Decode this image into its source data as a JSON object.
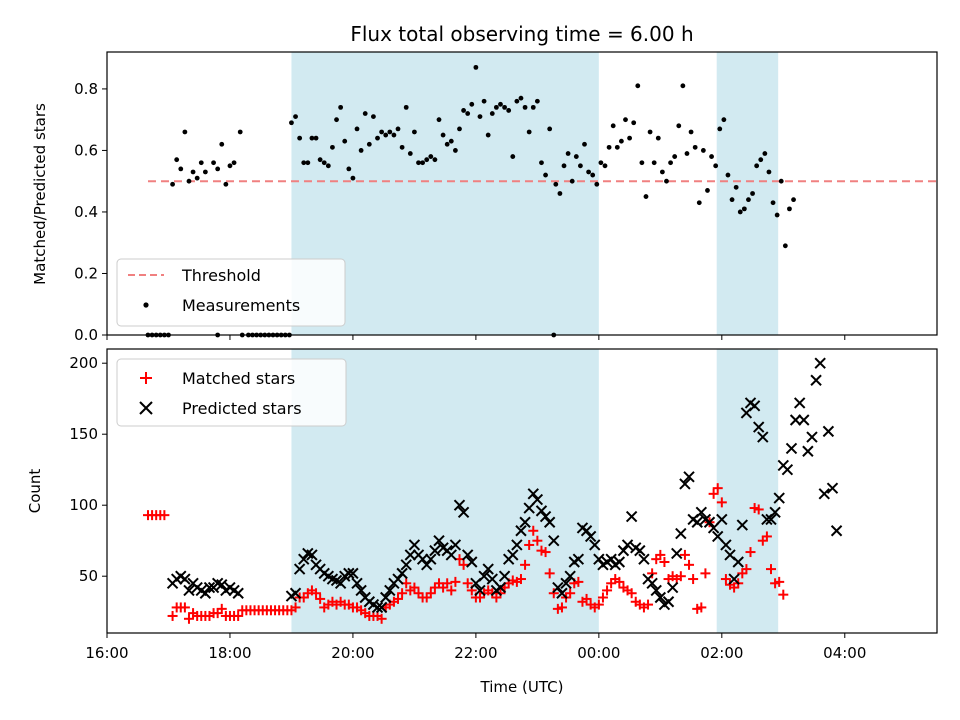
{
  "chart_data": {
    "type": "scatter",
    "title": "Flux total observing time = 6.00 h",
    "xlabel": "Time (UTC)",
    "x_ticks": [
      "16:00",
      "18:00",
      "20:00",
      "22:00",
      "00:00",
      "02:00",
      "04:00"
    ],
    "x_range": [
      "16:00",
      "05:30"
    ],
    "shaded_spans": [
      [
        "19:00",
        "00:00"
      ],
      [
        "01:55",
        "02:55"
      ]
    ],
    "shade_color": "#add8e6",
    "panels": [
      {
        "ylabel": "Matched/Predicted stars",
        "ylim": [
          0,
          0.92
        ],
        "y_ticks": [
          "0.0",
          "0.2",
          "0.4",
          "0.6",
          "0.8"
        ],
        "y_tick_values": [
          0,
          0.2,
          0.4,
          0.6,
          0.8
        ],
        "legend_placement": "lower-left",
        "threshold": {
          "name": "Threshold",
          "value": 0.5,
          "x_range": [
            "16:40",
            "05:30"
          ],
          "color": "#f08080"
        },
        "series": [
          {
            "name": "Measurements",
            "marker": "dot",
            "color": "#000000",
            "points": [
              [
                "16:40",
                0
              ],
              [
                "16:44",
                0
              ],
              [
                "16:48",
                0
              ],
              [
                "16:52",
                0
              ],
              [
                "16:56",
                0
              ],
              [
                "17:00",
                0
              ],
              [
                "17:48",
                0
              ],
              [
                "18:12",
                0
              ],
              [
                "18:18",
                0
              ],
              [
                "18:22",
                0
              ],
              [
                "18:26",
                0
              ],
              [
                "18:30",
                0
              ],
              [
                "18:34",
                0
              ],
              [
                "18:38",
                0
              ],
              [
                "18:42",
                0
              ],
              [
                "18:46",
                0
              ],
              [
                "18:50",
                0
              ],
              [
                "18:54",
                0
              ],
              [
                "18:58",
                0
              ],
              [
                "17:04",
                0.49
              ],
              [
                "17:08",
                0.57
              ],
              [
                "17:12",
                0.54
              ],
              [
                "17:16",
                0.66
              ],
              [
                "17:20",
                0.5
              ],
              [
                "17:24",
                0.53
              ],
              [
                "17:28",
                0.51
              ],
              [
                "17:32",
                0.56
              ],
              [
                "17:36",
                0.53
              ],
              [
                "17:44",
                0.56
              ],
              [
                "17:48",
                0.54
              ],
              [
                "17:52",
                0.62
              ],
              [
                "17:56",
                0.49
              ],
              [
                "18:00",
                0.55
              ],
              [
                "18:04",
                0.56
              ],
              [
                "18:10",
                0.66
              ],
              [
                "19:00",
                0.69
              ],
              [
                "19:04",
                0.71
              ],
              [
                "19:08",
                0.64
              ],
              [
                "19:12",
                0.56
              ],
              [
                "19:16",
                0.56
              ],
              [
                "19:20",
                0.64
              ],
              [
                "19:24",
                0.64
              ],
              [
                "19:28",
                0.57
              ],
              [
                "19:32",
                0.56
              ],
              [
                "19:36",
                0.55
              ],
              [
                "19:40",
                0.61
              ],
              [
                "19:44",
                0.7
              ],
              [
                "19:48",
                0.74
              ],
              [
                "19:52",
                0.63
              ],
              [
                "19:56",
                0.54
              ],
              [
                "20:00",
                0.51
              ],
              [
                "20:04",
                0.67
              ],
              [
                "20:08",
                0.6
              ],
              [
                "20:12",
                0.72
              ],
              [
                "20:16",
                0.62
              ],
              [
                "20:20",
                0.71
              ],
              [
                "20:24",
                0.64
              ],
              [
                "20:28",
                0.66
              ],
              [
                "20:32",
                0.65
              ],
              [
                "20:36",
                0.66
              ],
              [
                "20:40",
                0.65
              ],
              [
                "20:44",
                0.67
              ],
              [
                "20:48",
                0.61
              ],
              [
                "20:52",
                0.74
              ],
              [
                "20:56",
                0.59
              ],
              [
                "21:00",
                0.66
              ],
              [
                "21:04",
                0.56
              ],
              [
                "21:08",
                0.56
              ],
              [
                "21:12",
                0.57
              ],
              [
                "21:16",
                0.58
              ],
              [
                "21:20",
                0.57
              ],
              [
                "21:24",
                0.7
              ],
              [
                "21:28",
                0.65
              ],
              [
                "21:32",
                0.62
              ],
              [
                "21:36",
                0.63
              ],
              [
                "21:40",
                0.6
              ],
              [
                "21:44",
                0.67
              ],
              [
                "21:48",
                0.73
              ],
              [
                "21:52",
                0.72
              ],
              [
                "21:56",
                0.75
              ],
              [
                "22:00",
                0.87
              ],
              [
                "22:04",
                0.71
              ],
              [
                "22:08",
                0.76
              ],
              [
                "22:12",
                0.65
              ],
              [
                "22:16",
                0.72
              ],
              [
                "22:20",
                0.74
              ],
              [
                "22:24",
                0.75
              ],
              [
                "22:28",
                0.74
              ],
              [
                "22:32",
                0.73
              ],
              [
                "22:36",
                0.58
              ],
              [
                "22:40",
                0.76
              ],
              [
                "22:44",
                0.77
              ],
              [
                "22:48",
                0.74
              ],
              [
                "22:52",
                0.66
              ],
              [
                "22:56",
                0.74
              ],
              [
                "23:00",
                0.76
              ],
              [
                "23:04",
                0.56
              ],
              [
                "23:08",
                0.52
              ],
              [
                "23:12",
                0.67
              ],
              [
                "23:16",
                0.0
              ],
              [
                "23:18",
                0.49
              ],
              [
                "23:22",
                0.46
              ],
              [
                "23:26",
                0.55
              ],
              [
                "23:30",
                0.59
              ],
              [
                "23:34",
                0.5
              ],
              [
                "23:38",
                0.58
              ],
              [
                "23:42",
                0.55
              ],
              [
                "23:46",
                0.62
              ],
              [
                "23:50",
                0.53
              ],
              [
                "23:54",
                0.52
              ],
              [
                "23:58",
                0.49
              ],
              [
                "00:02",
                0.56
              ],
              [
                "00:06",
                0.55
              ],
              [
                "00:10",
                0.61
              ],
              [
                "00:14",
                0.68
              ],
              [
                "00:18",
                0.61
              ],
              [
                "00:22",
                0.63
              ],
              [
                "00:26",
                0.7
              ],
              [
                "00:30",
                0.64
              ],
              [
                "00:34",
                0.69
              ],
              [
                "00:38",
                0.81
              ],
              [
                "00:42",
                0.56
              ],
              [
                "00:46",
                0.45
              ],
              [
                "00:50",
                0.66
              ],
              [
                "00:54",
                0.56
              ],
              [
                "00:58",
                0.64
              ],
              [
                "01:02",
                0.53
              ],
              [
                "01:06",
                0.5
              ],
              [
                "01:10",
                0.56
              ],
              [
                "01:14",
                0.58
              ],
              [
                "01:18",
                0.68
              ],
              [
                "01:22",
                0.81
              ],
              [
                "01:26",
                0.59
              ],
              [
                "01:30",
                0.66
              ],
              [
                "01:34",
                0.61
              ],
              [
                "01:38",
                0.43
              ],
              [
                "01:42",
                0.6
              ],
              [
                "01:46",
                0.47
              ],
              [
                "01:50",
                0.58
              ],
              [
                "01:54",
                0.55
              ],
              [
                "01:58",
                0.67
              ],
              [
                "02:02",
                0.7
              ],
              [
                "02:06",
                0.52
              ],
              [
                "02:10",
                0.44
              ],
              [
                "02:14",
                0.48
              ],
              [
                "02:18",
                0.4
              ],
              [
                "02:22",
                0.41
              ],
              [
                "02:26",
                0.44
              ],
              [
                "02:30",
                0.46
              ],
              [
                "02:34",
                0.55
              ],
              [
                "02:38",
                0.57
              ],
              [
                "02:42",
                0.59
              ],
              [
                "02:46",
                0.53
              ],
              [
                "02:50",
                0.43
              ],
              [
                "02:54",
                0.39
              ],
              [
                "02:58",
                0.5
              ],
              [
                "03:02",
                0.29
              ],
              [
                "03:06",
                0.41
              ],
              [
                "03:10",
                0.44
              ]
            ]
          }
        ]
      },
      {
        "ylabel": "Count",
        "ylim": [
          10,
          210
        ],
        "y_ticks": [
          "50",
          "100",
          "150",
          "200"
        ],
        "y_tick_values": [
          50,
          100,
          150,
          200
        ],
        "legend_placement": "upper-left",
        "series": [
          {
            "name": "Matched stars",
            "marker": "plus",
            "color": "#ff0000",
            "points": []
          },
          {
            "name": "Predicted stars",
            "marker": "x",
            "color": "#000000",
            "points": []
          }
        ]
      }
    ]
  }
}
